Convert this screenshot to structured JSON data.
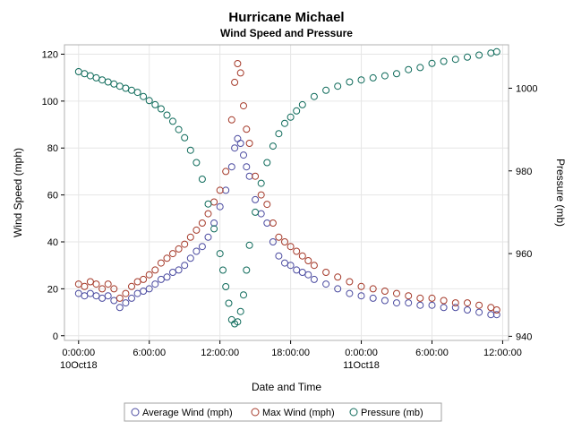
{
  "chart_data": {
    "type": "scatter",
    "title": "Hurricane Michael",
    "subtitle": "Wind Speed and Pressure",
    "xlabel": "Date and Time",
    "ylabel": "Wind Speed (mph)",
    "y2label": "Pressure (mb)",
    "x_tick_labels": [
      {
        "time": "0:00:00",
        "date": "10Oct18"
      },
      {
        "time": "6:00:00",
        "date": ""
      },
      {
        "time": "12:00:00",
        "date": ""
      },
      {
        "time": "18:00:00",
        "date": ""
      },
      {
        "time": "0:00:00",
        "date": "11Oct18"
      },
      {
        "time": "6:00:00",
        "date": ""
      },
      {
        "time": "12:00:00",
        "date": ""
      }
    ],
    "x_unit": "hours since 10Oct18 0:00",
    "xlim": [
      -1.2,
      36.5
    ],
    "ylim": [
      -2,
      124
    ],
    "y_ticks": [
      0,
      20,
      40,
      60,
      80,
      100,
      120
    ],
    "y2lim": [
      939,
      1010.5
    ],
    "y2_ticks": [
      940,
      960,
      980,
      1000
    ],
    "grid": true,
    "legend_position": "bottom",
    "legend": [
      "Average Wind (mph)",
      "Max Wind (mph)",
      "Pressure (mb)"
    ],
    "series": [
      {
        "name": "Average Wind (mph)",
        "axis": "left",
        "color": "#4b4ba0",
        "x": [
          0.0,
          0.5,
          1.0,
          1.5,
          2.0,
          2.5,
          3.0,
          3.5,
          4.0,
          4.5,
          5.0,
          5.5,
          6.0,
          6.5,
          7.0,
          7.5,
          8.0,
          8.5,
          9.0,
          9.5,
          10.0,
          10.5,
          11.0,
          11.5,
          12.0,
          12.5,
          13.0,
          13.25,
          13.5,
          13.75,
          14.0,
          14.25,
          14.5,
          15.0,
          15.5,
          16.0,
          16.5,
          17.0,
          17.5,
          18.0,
          18.5,
          19.0,
          19.5,
          20.0,
          21.0,
          22.0,
          23.0,
          24.0,
          25.0,
          26.0,
          27.0,
          28.0,
          29.0,
          30.0,
          31.0,
          32.0,
          33.0,
          34.0,
          35.0,
          35.5
        ],
        "y": [
          18,
          17,
          18,
          17,
          16,
          17,
          15,
          12,
          14,
          16,
          18,
          19,
          20,
          22,
          24,
          25,
          27,
          28,
          30,
          33,
          36,
          38,
          42,
          48,
          55,
          62,
          72,
          80,
          84,
          82,
          77,
          72,
          68,
          58,
          52,
          48,
          40,
          34,
          31,
          30,
          28,
          27,
          26,
          24,
          22,
          20,
          18,
          17,
          16,
          15,
          14,
          14,
          13,
          13,
          12,
          12,
          11,
          10,
          9,
          9
        ]
      },
      {
        "name": "Max Wind (mph)",
        "axis": "left",
        "color": "#a53a2a",
        "x": [
          0.0,
          0.5,
          1.0,
          1.5,
          2.0,
          2.5,
          3.0,
          3.5,
          4.0,
          4.5,
          5.0,
          5.5,
          6.0,
          6.5,
          7.0,
          7.5,
          8.0,
          8.5,
          9.0,
          9.5,
          10.0,
          10.5,
          11.0,
          11.5,
          12.0,
          12.5,
          13.0,
          13.25,
          13.5,
          13.75,
          14.0,
          14.25,
          14.5,
          15.0,
          15.5,
          16.0,
          16.5,
          17.0,
          17.5,
          18.0,
          18.5,
          19.0,
          19.5,
          20.0,
          21.0,
          22.0,
          23.0,
          24.0,
          25.0,
          26.0,
          27.0,
          28.0,
          29.0,
          30.0,
          31.0,
          32.0,
          33.0,
          34.0,
          35.0,
          35.5
        ],
        "y": [
          22,
          21,
          23,
          22,
          20,
          22,
          20,
          16,
          18,
          21,
          23,
          24,
          26,
          28,
          31,
          33,
          35,
          37,
          39,
          42,
          45,
          48,
          52,
          57,
          62,
          70,
          92,
          108,
          116,
          112,
          98,
          88,
          82,
          68,
          60,
          56,
          48,
          42,
          40,
          38,
          36,
          34,
          32,
          30,
          27,
          25,
          23,
          21,
          20,
          19,
          18,
          17,
          16,
          16,
          15,
          14,
          14,
          13,
          12,
          11
        ]
      },
      {
        "name": "Pressure (mb)",
        "axis": "right",
        "color": "#0f6b5b",
        "x": [
          0.0,
          0.5,
          1.0,
          1.5,
          2.0,
          2.5,
          3.0,
          3.5,
          4.0,
          4.5,
          5.0,
          5.5,
          6.0,
          6.5,
          7.0,
          7.5,
          8.0,
          8.5,
          9.0,
          9.5,
          10.0,
          10.5,
          11.0,
          11.5,
          12.0,
          12.25,
          12.5,
          12.75,
          13.0,
          13.25,
          13.5,
          13.75,
          14.0,
          14.25,
          14.5,
          15.0,
          15.5,
          16.0,
          16.5,
          17.0,
          17.5,
          18.0,
          18.5,
          19.0,
          20.0,
          21.0,
          22.0,
          23.0,
          24.0,
          25.0,
          26.0,
          27.0,
          28.0,
          29.0,
          30.0,
          31.0,
          32.0,
          33.0,
          34.0,
          35.0,
          35.5
        ],
        "y": [
          1004,
          1003.5,
          1003,
          1002.5,
          1002,
          1001.5,
          1001,
          1000.5,
          1000,
          999.5,
          999,
          998,
          997,
          996,
          995,
          993.5,
          992,
          990,
          988,
          985,
          982,
          978,
          972,
          966,
          960,
          956,
          952,
          948,
          944,
          943,
          943.5,
          946,
          950,
          956,
          962,
          970,
          977,
          982,
          986,
          989,
          991.5,
          993,
          994.5,
          996,
          998,
          999.5,
          1000.5,
          1001.5,
          1002,
          1002.5,
          1003,
          1003.5,
          1004.5,
          1005,
          1006,
          1006.5,
          1007,
          1007.5,
          1008,
          1008.5,
          1008.8
        ]
      }
    ]
  }
}
